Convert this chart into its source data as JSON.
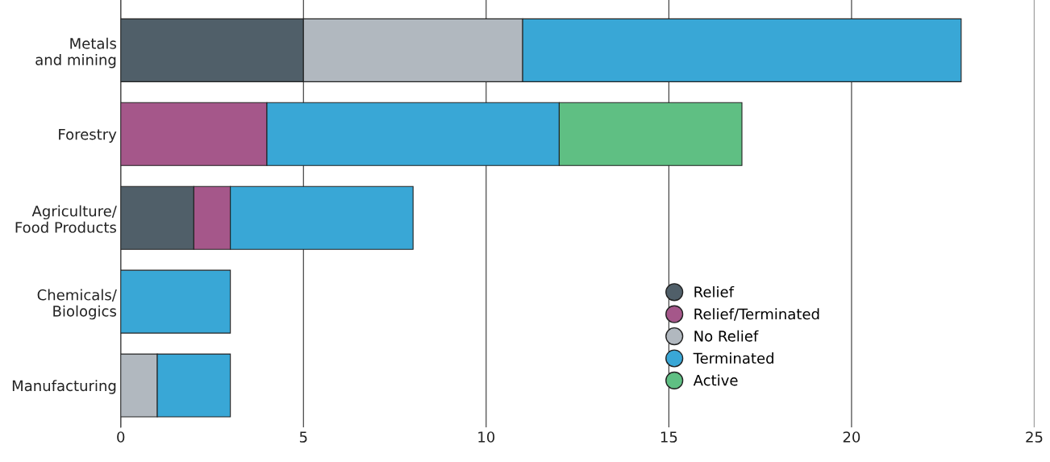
{
  "chart_data": {
    "type": "bar",
    "orientation": "horizontal",
    "stacked": true,
    "categories": [
      "Metals\nand mining",
      "Forestry",
      "Agriculture/\nFood Products",
      "Chemicals/\nBiologics",
      "Manufacturing"
    ],
    "series": [
      {
        "name": "Relief",
        "color": "#505f69",
        "values": [
          5,
          null,
          2,
          null,
          null
        ]
      },
      {
        "name": "Relief/Terminated",
        "color": "#a5578a",
        "values": [
          null,
          4,
          1,
          null,
          null
        ]
      },
      {
        "name": "No Relief",
        "color": "#b1b8bf",
        "values": [
          6,
          null,
          null,
          null,
          1
        ]
      },
      {
        "name": "Terminated",
        "color": "#39a7d6",
        "values": [
          12,
          8,
          5,
          3,
          2
        ]
      },
      {
        "name": "Active",
        "color": "#5fbf83",
        "values": [
          null,
          5,
          null,
          null,
          null
        ]
      }
    ],
    "xlim": [
      0,
      25
    ],
    "xticks": [
      0,
      5,
      10,
      15,
      20,
      25
    ],
    "grid": "x",
    "legend": "bottom right",
    "marker": "circle"
  }
}
